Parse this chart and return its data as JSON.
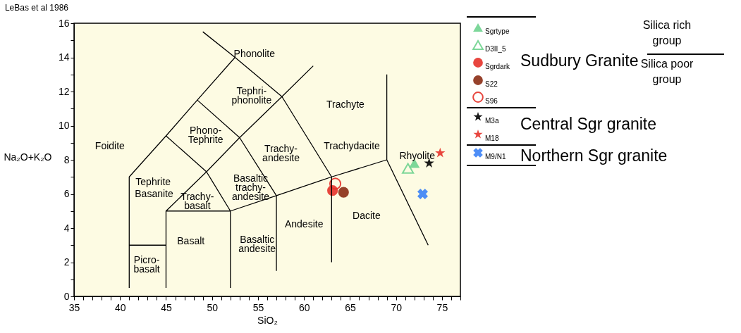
{
  "chart_data": {
    "type": "scatter",
    "title": "LeBas et al 1986",
    "xlabel": "SiO₂",
    "ylabel": "Na₂O+K₂O",
    "xlim": [
      35,
      77
    ],
    "ylim": [
      0,
      16
    ],
    "xticks": [
      35,
      {
        "value": 36,
        "label": null
      },
      {
        "value": 37,
        "label": null
      },
      {
        "value": 38,
        "label": null
      },
      {
        "value": 39,
        "label": null
      },
      40,
      {
        "value": 41,
        "label": null
      },
      {
        "value": 42,
        "label": null
      },
      {
        "value": 43,
        "label": null
      },
      {
        "value": 44,
        "label": null
      },
      45,
      {
        "value": 46,
        "label": null
      },
      {
        "value": 47,
        "label": null
      },
      {
        "value": 48,
        "label": null
      },
      {
        "value": 49,
        "label": null
      },
      50,
      {
        "value": 51,
        "label": null
      },
      {
        "value": 52,
        "label": null
      },
      {
        "value": 53,
        "label": null
      },
      {
        "value": 54,
        "label": null
      },
      55,
      {
        "value": 56,
        "label": null
      },
      {
        "value": 57,
        "label": null
      },
      {
        "value": 58,
        "label": null
      },
      {
        "value": 59,
        "label": null
      },
      60,
      {
        "value": 61,
        "label": null
      },
      {
        "value": 62,
        "label": null
      },
      {
        "value": 63,
        "label": null
      },
      {
        "value": 64,
        "label": null
      },
      65,
      {
        "value": 66,
        "label": null
      },
      {
        "value": 67,
        "label": null
      },
      {
        "value": 68,
        "label": null
      },
      {
        "value": 69,
        "label": null
      },
      70,
      {
        "value": 71,
        "label": null
      },
      {
        "value": 72,
        "label": null
      },
      {
        "value": 73,
        "label": null
      },
      {
        "value": 74,
        "label": null
      },
      75,
      {
        "value": 76,
        "label": null
      },
      {
        "value": 77,
        "label": null
      }
    ],
    "yticks": [
      0,
      {
        "value": 1,
        "label": null
      },
      2,
      {
        "value": 3,
        "label": null
      },
      4,
      {
        "value": 5,
        "label": null
      },
      6,
      {
        "value": 7,
        "label": null
      },
      8,
      {
        "value": 9,
        "label": null
      },
      10,
      {
        "value": 11,
        "label": null
      },
      12,
      {
        "value": 13,
        "label": null
      },
      14,
      {
        "value": 15,
        "label": null
      },
      16
    ],
    "grid": false,
    "legend": "right",
    "series": [
      {
        "name": "Sgrtype",
        "color": "#6fd38f",
        "marker": "triangle",
        "x": [
          72.0
        ],
        "values": [
          7.8
        ]
      },
      {
        "name": "D3II_5",
        "color": "#6fd38f",
        "marker": "triangle-open",
        "x": [
          71.3
        ],
        "values": [
          7.5
        ]
      },
      {
        "name": "Sgrdark",
        "color": "#e5322a",
        "marker": "circle",
        "x": [
          63.1
        ],
        "values": [
          6.2
        ]
      },
      {
        "name": "S22",
        "color": "#8b2c14",
        "marker": "circle",
        "x": [
          64.3
        ],
        "values": [
          6.1
        ]
      },
      {
        "name": "S96",
        "color": "#e5322a",
        "marker": "circle-open",
        "x": [
          63.4
        ],
        "values": [
          6.6
        ]
      },
      {
        "name": "M3a",
        "color": "#000000",
        "marker": "star",
        "x": [
          73.6
        ],
        "values": [
          7.8
        ]
      },
      {
        "name": "M18",
        "color": "#e5322a",
        "marker": "star",
        "x": [
          74.8
        ],
        "values": [
          8.4
        ]
      },
      {
        "name": "M9/N1",
        "color": "#3b82f6",
        "marker": "cross",
        "x": [
          72.9
        ],
        "values": [
          6.0
        ]
      },
      {
        "type": "line",
        "color": "#000000",
        "x": [
          41,
          41,
          45,
          48.4,
          52.5
        ],
        "values": [
          0.5,
          7,
          9.4,
          11.5,
          14
        ]
      },
      {
        "type": "line",
        "color": "#000000",
        "x": [
          49,
          52.5,
          57.6,
          63,
          63
        ],
        "values": [
          15.5,
          14,
          11.7,
          7,
          2
        ]
      },
      {
        "type": "line",
        "color": "#000000",
        "x": [
          45,
          45,
          49.4,
          53,
          57.6,
          61
        ],
        "values": [
          0.5,
          5,
          7.3,
          9.3,
          11.7,
          13.5
        ]
      },
      {
        "type": "line",
        "color": "#000000",
        "x": [
          45,
          49.4,
          52,
          52
        ],
        "values": [
          9.4,
          7.3,
          5,
          0.5
        ]
      },
      {
        "type": "line",
        "color": "#000000",
        "x": [
          48.4,
          53,
          57,
          57
        ],
        "values": [
          11.5,
          9.3,
          5.9,
          1.5
        ]
      },
      {
        "type": "line",
        "color": "#000000",
        "x": [
          41,
          45
        ],
        "values": [
          3,
          3
        ]
      },
      {
        "type": "line",
        "color": "#000000",
        "x": [
          45,
          52,
          57,
          63,
          69
        ],
        "values": [
          5,
          5,
          5.9,
          7,
          8
        ]
      },
      {
        "type": "line",
        "color": "#000000",
        "x": [
          69,
          69,
          73.5
        ],
        "values": [
          13,
          8,
          3
        ]
      }
    ],
    "annotations": [
      "Sudbury Granite",
      "Central Sgr granite",
      "Northern Sgr granite",
      "Silica rich group",
      "Silica poor group",
      "Phonolite",
      "Tephri-\nphonolite",
      "Trachyte",
      "Phono-\nTephrite",
      "Foidite",
      "Trachy-\nandesite",
      "Trachydacite",
      "Rhyolite",
      "Basaltic\ntrachy-\nandesite",
      "Tephrite",
      "Basanite",
      "Trachy-\nbasalt",
      "Dacite",
      "Andesite",
      "Basaltic\nandesite",
      "Basalt",
      "Picro-\nbasalt"
    ]
  }
}
